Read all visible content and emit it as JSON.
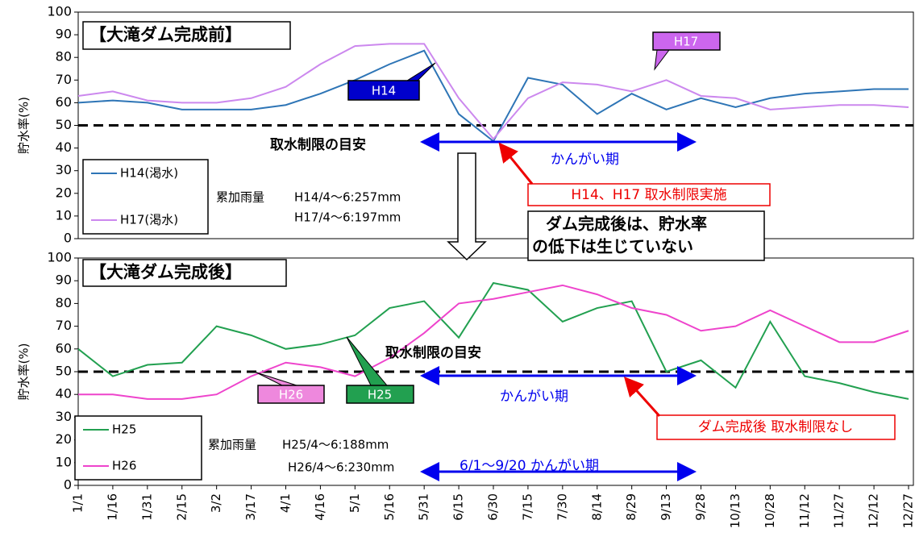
{
  "chart_data": [
    {
      "type": "line",
      "title": "【大滝ダム完成前】",
      "y_label": "貯水率(%)",
      "ylim": [
        0,
        100
      ],
      "yticks": [
        0,
        10,
        20,
        30,
        40,
        50,
        60,
        70,
        80,
        90,
        100
      ],
      "threshold": 50,
      "series": [
        {
          "name": "H14(渇水)",
          "color": "#2e75b6",
          "values": [
            60,
            61,
            60,
            57,
            57,
            57,
            59,
            64,
            70,
            77,
            83,
            55,
            43,
            71,
            68,
            55,
            64,
            57,
            62,
            58,
            62,
            64,
            65,
            66,
            66
          ]
        },
        {
          "name": "H17(渇水)",
          "color": "#cc88ee",
          "values": [
            63,
            65,
            61,
            60,
            60,
            62,
            67,
            77,
            85,
            86,
            86,
            62,
            44,
            62,
            69,
            68,
            65,
            70,
            63,
            62,
            57,
            58,
            59,
            59,
            58
          ]
        }
      ],
      "annotations": [
        "H14",
        "H17",
        "取水制限の目安",
        "かんがい期",
        "H14、H17  取水制限実施",
        "累加雨量",
        "H14/4～6:257mm",
        "H17/4～6:197mm"
      ]
    },
    {
      "type": "line",
      "title": "【大滝ダム完成後】",
      "y_label": "貯水率(%)",
      "ylim": [
        0,
        100
      ],
      "yticks": [
        0,
        10,
        20,
        30,
        40,
        50,
        60,
        70,
        80,
        90,
        100
      ],
      "threshold": 50,
      "categories": [
        "1/1",
        "1/16",
        "1/31",
        "2/15",
        "3/2",
        "3/17",
        "4/1",
        "4/16",
        "5/1",
        "5/16",
        "5/31",
        "6/15",
        "6/30",
        "7/15",
        "7/30",
        "8/14",
        "8/29",
        "9/13",
        "9/28",
        "10/13",
        "10/28",
        "11/12",
        "11/27",
        "12/12",
        "12/27"
      ],
      "series": [
        {
          "name": "H25",
          "color": "#22a050",
          "values": [
            60,
            48,
            53,
            54,
            70,
            66,
            60,
            62,
            66,
            78,
            81,
            65,
            89,
            86,
            72,
            78,
            81,
            50,
            55,
            43,
            72,
            48,
            45,
            41,
            38
          ]
        },
        {
          "name": "H26",
          "color": "#ee44cc",
          "values": [
            40,
            40,
            38,
            38,
            40,
            48,
            54,
            52,
            48,
            56,
            67,
            80,
            82,
            85,
            88,
            84,
            78,
            75,
            68,
            70,
            77,
            70,
            63,
            63,
            68
          ]
        }
      ],
      "annotations": [
        "H26",
        "H25",
        "取水制限の目安",
        "かんがい期",
        "ダム完成後  取水制限なし",
        "累加雨量",
        "H25/4～6:188mm",
        "H26/4～6:230mm",
        "6/1～9/20  かんがい期"
      ]
    }
  ],
  "callout": [
    "ダム完成後は、貯水率",
    "の低下は生じていない"
  ]
}
